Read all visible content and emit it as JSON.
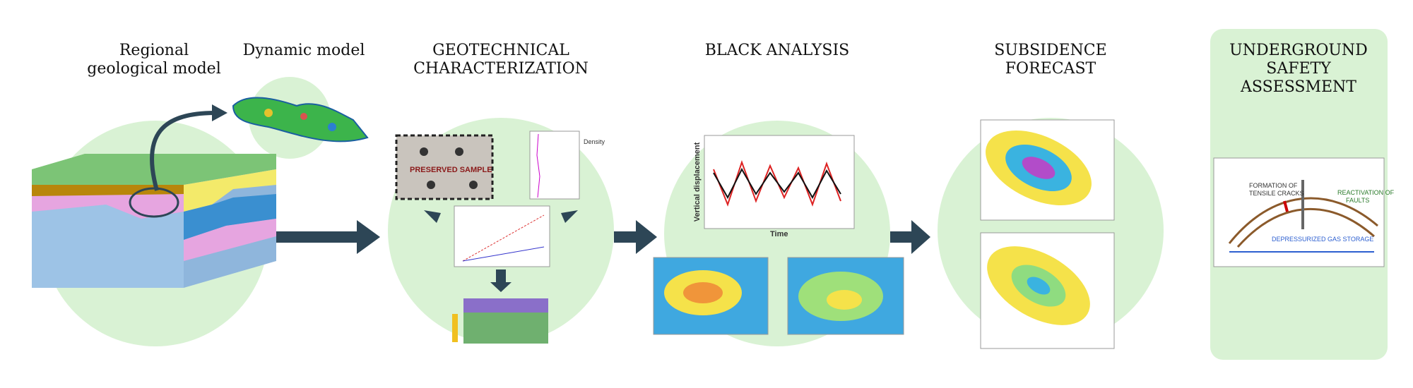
{
  "stages": [
    {
      "title_lines": [
        "Regional",
        "geological model"
      ]
    },
    {
      "title_lines": [
        "Dynamic model"
      ]
    },
    {
      "title_lines": [
        "GEOTECHNICAL",
        "CHARACTERIZATION"
      ]
    },
    {
      "title_lines": [
        "BLACK ANALYSIS"
      ]
    },
    {
      "title_lines": [
        "SUBSIDENCE",
        "FORECAST"
      ]
    },
    {
      "title_lines": [
        "UNDERGROUND",
        "SAFETY",
        "ASSESSMENT"
      ]
    }
  ],
  "annotations": {
    "density": "Density",
    "vertical_displacement": "Vertical displacement",
    "time": "Time",
    "cracks": [
      "FORMATION OF",
      "TENSILE CRACKS"
    ],
    "faults": [
      "REACTIVATION OF",
      "FAULTS"
    ],
    "storage": "DEPRESSURIZED GAS STORAGE",
    "preserved": "PRESERVED SAMPLE"
  }
}
